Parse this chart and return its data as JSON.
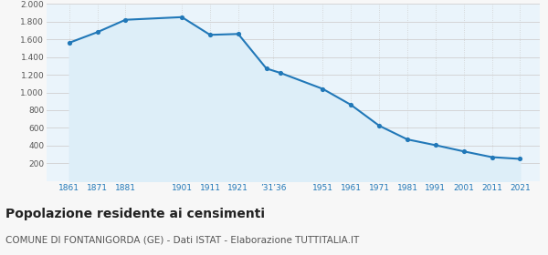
{
  "years": [
    1861,
    1871,
    1881,
    1901,
    1911,
    1921,
    1931,
    1936,
    1951,
    1961,
    1971,
    1981,
    1991,
    2001,
    2011,
    2021
  ],
  "population": [
    1560,
    1680,
    1820,
    1850,
    1650,
    1660,
    1270,
    1220,
    1040,
    860,
    625,
    470,
    405,
    335,
    270,
    250
  ],
  "line_color": "#2178b8",
  "fill_color": "#ddeef8",
  "marker_color": "#2178b8",
  "bg_color": "#f7f7f7",
  "plot_bg_color": "#eaf4fb",
  "grid_color": "#d0d0d0",
  "yticks": [
    200,
    400,
    600,
    800,
    1000,
    1200,
    1400,
    1600,
    1800,
    2000
  ],
  "x_tick_positions": [
    1861,
    1871,
    1881,
    1901,
    1911,
    1921,
    1933.5,
    1951,
    1961,
    1971,
    1981,
    1991,
    2001,
    2011,
    2021
  ],
  "x_tick_labels": [
    "1861",
    "1871",
    "1881",
    "1901",
    "1911",
    "1921",
    "’31’36",
    "1951",
    "1961",
    "1971",
    "1981",
    "1991",
    "2001",
    "2011",
    "2021"
  ],
  "title": "Popolazione residente ai censimenti",
  "subtitle": "COMUNE DI FONTANIGORDA (GE) - Dati ISTAT - Elaborazione TUTTITALIA.IT",
  "title_fontsize": 10,
  "subtitle_fontsize": 7.5,
  "xlim": [
    1853,
    2028
  ],
  "ylim": [
    0,
    2000
  ]
}
